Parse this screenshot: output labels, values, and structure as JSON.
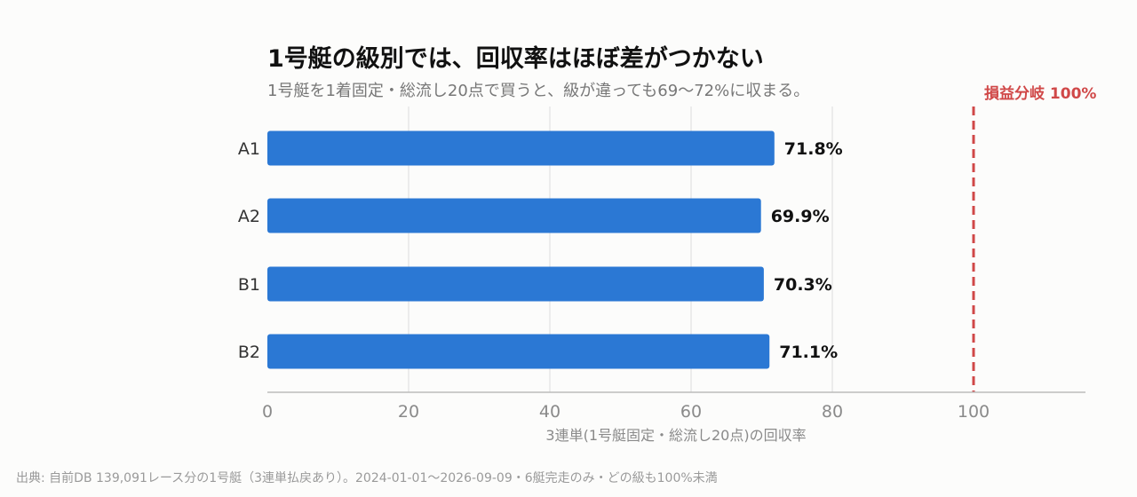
{
  "chart_data": {
    "type": "bar",
    "orientation": "horizontal",
    "title": "1号艇の級別では、回収率はほぼ差がつかない",
    "subtitle": "1号艇を1着固定・総流し20点で買うと、級が違っても69〜72%に収まる。",
    "categories": [
      "A1",
      "A2",
      "B1",
      "B2"
    ],
    "values": [
      71.8,
      69.9,
      70.3,
      71.1
    ],
    "value_labels": [
      "71.8%",
      "69.9%",
      "70.3%",
      "71.1%"
    ],
    "xlabel": "3連単(1号艇固定・総流し20点)の回収率",
    "ylabel": "",
    "xlim": [
      0,
      115
    ],
    "xticks": [
      0,
      20,
      40,
      60,
      80,
      100
    ],
    "xtick_labels": [
      "0",
      "20",
      "40",
      "60",
      "80",
      "100"
    ],
    "grid": "vertical",
    "reference_line": {
      "value": 100,
      "label": "損益分岐 100%",
      "style": "dashed"
    },
    "colors": {
      "bar": "#2b78d4",
      "reference": "#d04848",
      "grid": "#dddddd",
      "axis": "#bbbbbb"
    }
  },
  "footer": "出典: 自前DB 139,091レース分の1号艇（3連単払戻あり）。2024-01-01〜2026-09-09・6艇完走のみ・どの級も100%未満"
}
